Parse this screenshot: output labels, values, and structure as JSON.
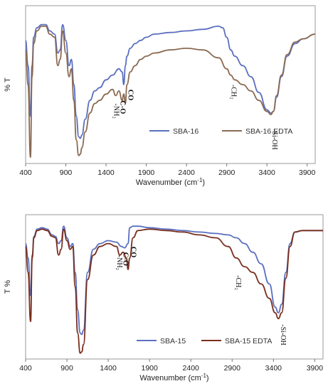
{
  "chart_data": [
    {
      "type": "line",
      "xlabel_main": "Wavenumber (cm",
      "xlabel_sup": "-1",
      "xlabel_end": ")",
      "ylabel": "% T",
      "xlim": [
        400,
        4000
      ],
      "xticks": [
        400,
        900,
        1400,
        1900,
        2400,
        2900,
        3400,
        3900
      ],
      "grid": false,
      "legend_position": "bottom-center",
      "series": [
        {
          "name": "SBA-16",
          "color": "#5b6fc0",
          "x": [
            400,
            430,
            460,
            480,
            500,
            540,
            600,
            650,
            700,
            760,
            800,
            830,
            860,
            900,
            940,
            970,
            1000,
            1030,
            1060,
            1080,
            1100,
            1140,
            1200,
            1260,
            1320,
            1400,
            1480,
            1560,
            1600,
            1620,
            1640,
            1660,
            1700,
            1760,
            1830,
            1900,
            2000,
            2200,
            2400,
            2600,
            2800,
            2850,
            2900,
            2950,
            3000,
            3100,
            3200,
            3300,
            3400,
            3450,
            3480,
            3520,
            3580,
            3650,
            3750,
            3850,
            4000
          ],
          "y": [
            0.78,
            0.62,
            0.3,
            0.62,
            0.8,
            0.86,
            0.88,
            0.88,
            0.84,
            0.82,
            0.7,
            0.72,
            0.88,
            0.78,
            0.62,
            0.66,
            0.5,
            0.3,
            0.17,
            0.16,
            0.18,
            0.28,
            0.4,
            0.46,
            0.48,
            0.53,
            0.56,
            0.6,
            0.58,
            0.5,
            0.62,
            0.68,
            0.73,
            0.76,
            0.78,
            0.8,
            0.82,
            0.83,
            0.84,
            0.85,
            0.87,
            0.86,
            0.8,
            0.72,
            0.68,
            0.62,
            0.55,
            0.45,
            0.34,
            0.32,
            0.33,
            0.42,
            0.55,
            0.68,
            0.76,
            0.79,
            0.82
          ]
        },
        {
          "name": "SBA-16 EDTA",
          "color": "#8b6a52",
          "x": [
            400,
            430,
            460,
            480,
            500,
            540,
            600,
            650,
            700,
            760,
            800,
            830,
            860,
            900,
            940,
            970,
            1000,
            1030,
            1060,
            1080,
            1100,
            1140,
            1200,
            1260,
            1320,
            1400,
            1480,
            1520,
            1560,
            1600,
            1620,
            1640,
            1660,
            1700,
            1760,
            1830,
            1900,
            2000,
            2200,
            2400,
            2600,
            2800,
            2900,
            2950,
            3000,
            3100,
            3200,
            3300,
            3400,
            3450,
            3480,
            3520,
            3580,
            3650,
            3750,
            3850,
            4000
          ],
          "y": [
            0.72,
            0.5,
            0.04,
            0.55,
            0.76,
            0.84,
            0.87,
            0.87,
            0.82,
            0.8,
            0.62,
            0.66,
            0.84,
            0.7,
            0.55,
            0.6,
            0.4,
            0.15,
            0.05,
            0.06,
            0.1,
            0.2,
            0.32,
            0.38,
            0.4,
            0.44,
            0.47,
            0.43,
            0.46,
            0.4,
            0.44,
            0.38,
            0.5,
            0.58,
            0.62,
            0.66,
            0.68,
            0.7,
            0.72,
            0.73,
            0.72,
            0.67,
            0.6,
            0.56,
            0.53,
            0.5,
            0.46,
            0.4,
            0.33,
            0.31,
            0.33,
            0.43,
            0.56,
            0.69,
            0.77,
            0.79,
            0.82
          ]
        }
      ],
      "annotations": [
        {
          "text": "-NH₂",
          "x": 1500,
          "y": 0.38
        },
        {
          "text": "C-O",
          "x": 1580,
          "y": 0.4
        },
        {
          "text": "CO",
          "x": 1680,
          "y": 0.47
        },
        {
          "text": "-CH₂",
          "x": 2960,
          "y": 0.5
        },
        {
          "text": "-Si-OH",
          "x": 3470,
          "y": 0.22
        }
      ]
    },
    {
      "type": "line",
      "xlabel_main": "Wavenumber (cm",
      "xlabel_sup": "-1",
      "xlabel_end": ")",
      "ylabel": "T %",
      "xlim": [
        400,
        4000
      ],
      "xticks": [
        400,
        900,
        1400,
        1900,
        2400,
        2900,
        3400,
        3900
      ],
      "grid": false,
      "legend_position": "bottom-center",
      "series": [
        {
          "name": "SBA-15",
          "color": "#5b6fc0",
          "x": [
            400,
            430,
            460,
            480,
            500,
            540,
            600,
            660,
            720,
            760,
            800,
            830,
            860,
            900,
            940,
            970,
            1000,
            1030,
            1060,
            1080,
            1100,
            1150,
            1220,
            1300,
            1400,
            1500,
            1560,
            1600,
            1640,
            1660,
            1700,
            1760,
            1900,
            2100,
            2300,
            2500,
            2700,
            2850,
            2950,
            3050,
            3150,
            3250,
            3350,
            3420,
            3460,
            3500,
            3550,
            3600,
            3660,
            3750,
            3850,
            4000
          ],
          "y": [
            0.8,
            0.7,
            0.44,
            0.72,
            0.85,
            0.9,
            0.91,
            0.9,
            0.86,
            0.85,
            0.8,
            0.82,
            0.92,
            0.84,
            0.78,
            0.8,
            0.6,
            0.34,
            0.18,
            0.17,
            0.2,
            0.6,
            0.76,
            0.8,
            0.82,
            0.81,
            0.78,
            0.77,
            0.8,
            0.91,
            0.92,
            0.92,
            0.91,
            0.9,
            0.89,
            0.88,
            0.87,
            0.86,
            0.84,
            0.8,
            0.74,
            0.66,
            0.52,
            0.36,
            0.32,
            0.38,
            0.6,
            0.8,
            0.88,
            0.89,
            0.89,
            0.89
          ]
        },
        {
          "name": "SBA-15 EDTA",
          "color": "#7a2e1d",
          "x": [
            400,
            430,
            460,
            480,
            500,
            540,
            600,
            660,
            720,
            760,
            800,
            830,
            860,
            900,
            940,
            970,
            1000,
            1030,
            1060,
            1080,
            1100,
            1150,
            1220,
            1300,
            1400,
            1500,
            1540,
            1580,
            1620,
            1640,
            1660,
            1700,
            1760,
            1900,
            2100,
            2300,
            2500,
            2700,
            2850,
            2950,
            3050,
            3150,
            3250,
            3350,
            3420,
            3460,
            3500,
            3550,
            3600,
            3660,
            3750,
            3850,
            4000
          ],
          "y": [
            0.78,
            0.6,
            0.26,
            0.7,
            0.84,
            0.89,
            0.9,
            0.89,
            0.85,
            0.84,
            0.72,
            0.76,
            0.9,
            0.82,
            0.76,
            0.78,
            0.5,
            0.18,
            0.04,
            0.05,
            0.1,
            0.55,
            0.72,
            0.78,
            0.8,
            0.78,
            0.72,
            0.74,
            0.7,
            0.62,
            0.7,
            0.84,
            0.89,
            0.9,
            0.89,
            0.88,
            0.86,
            0.84,
            0.78,
            0.7,
            0.64,
            0.6,
            0.52,
            0.42,
            0.32,
            0.28,
            0.32,
            0.56,
            0.78,
            0.88,
            0.89,
            0.89,
            0.89
          ]
        }
      ],
      "annotations": [
        {
          "text": "-NH₂",
          "x": 1510,
          "y": 0.72
        },
        {
          "text": "C-O",
          "x": 1585,
          "y": 0.74
        },
        {
          "text": "CO",
          "x": 1680,
          "y": 0.78
        },
        {
          "text": "-CH₂",
          "x": 2950,
          "y": 0.58
        },
        {
          "text": "-Si-OH",
          "x": 3490,
          "y": 0.24
        }
      ]
    }
  ]
}
